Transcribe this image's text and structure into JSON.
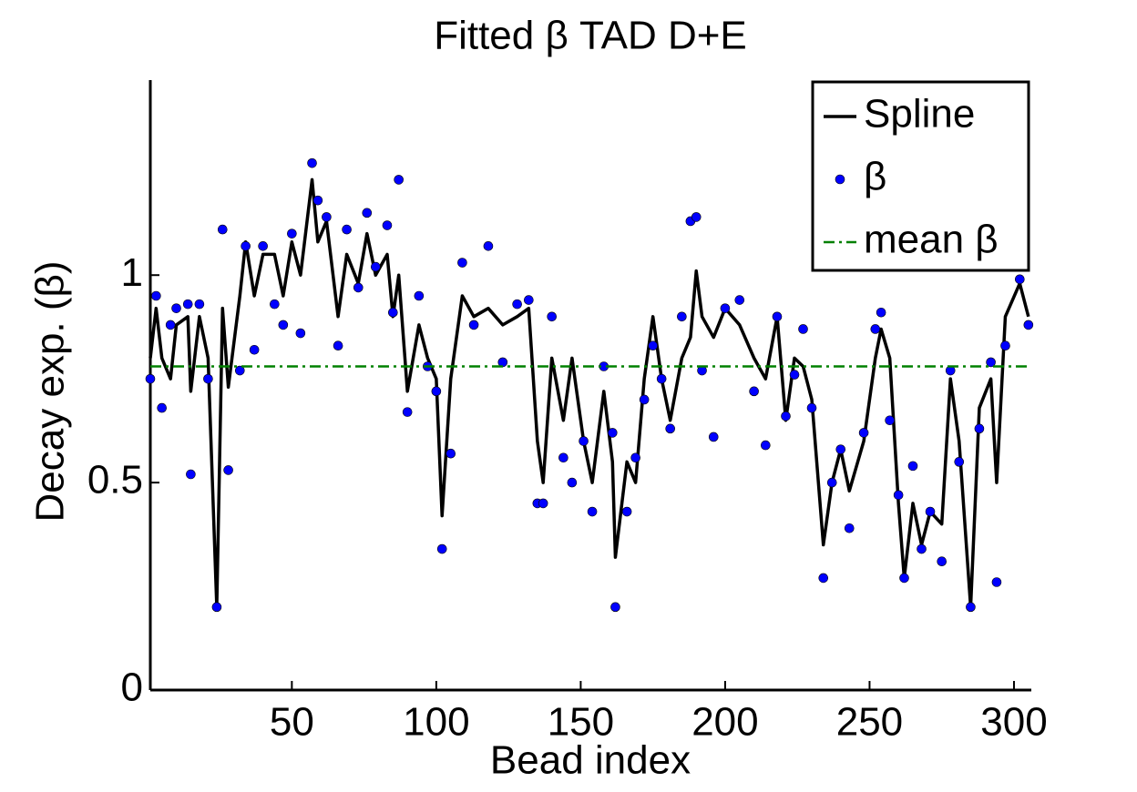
{
  "chart_data": {
    "type": "line",
    "title": "Fitted β TAD D+E",
    "x_label": "Bead index",
    "y_label": "Decay exp. (β)",
    "x": [
      1,
      3,
      5,
      8,
      10,
      14,
      15,
      18,
      21,
      24,
      26,
      28,
      32,
      34,
      37,
      40,
      44,
      47,
      50,
      53,
      57,
      59,
      62,
      66,
      69,
      73,
      76,
      79,
      83,
      85,
      87,
      90,
      94,
      97,
      100,
      102,
      105,
      109,
      113,
      118,
      123,
      128,
      132,
      135,
      137,
      140,
      144,
      147,
      151,
      154,
      158,
      161,
      162,
      166,
      169,
      172,
      175,
      178,
      181,
      185,
      188,
      190,
      192,
      196,
      200,
      205,
      210,
      214,
      218,
      221,
      224,
      227,
      230,
      234,
      237,
      240,
      243,
      248,
      252,
      254,
      257,
      260,
      262,
      265,
      268,
      271,
      275,
      278,
      281,
      285,
      288,
      292,
      294,
      297,
      302,
      305
    ],
    "series": [
      {
        "name": "Spline",
        "color": "#000000",
        "style": "line",
        "values": [
          0.8,
          0.92,
          0.8,
          0.75,
          0.88,
          0.9,
          0.72,
          0.9,
          0.8,
          0.2,
          0.92,
          0.73,
          0.95,
          1.08,
          0.95,
          1.05,
          1.05,
          0.95,
          1.08,
          1.0,
          1.23,
          1.08,
          1.13,
          0.9,
          1.05,
          0.98,
          1.1,
          1.0,
          1.05,
          0.9,
          1.0,
          0.72,
          0.88,
          0.8,
          0.75,
          0.42,
          0.75,
          0.95,
          0.9,
          0.92,
          0.88,
          0.9,
          0.92,
          0.6,
          0.5,
          0.8,
          0.65,
          0.8,
          0.6,
          0.5,
          0.72,
          0.55,
          0.32,
          0.55,
          0.5,
          0.75,
          0.9,
          0.75,
          0.65,
          0.8,
          0.85,
          1.01,
          0.9,
          0.85,
          0.92,
          0.88,
          0.8,
          0.75,
          0.9,
          0.65,
          0.8,
          0.78,
          0.7,
          0.35,
          0.5,
          0.58,
          0.48,
          0.6,
          0.8,
          0.87,
          0.8,
          0.45,
          0.27,
          0.45,
          0.35,
          0.43,
          0.4,
          0.75,
          0.6,
          0.2,
          0.68,
          0.75,
          0.5,
          0.9,
          0.98,
          0.9
        ]
      },
      {
        "name": "β",
        "color": "#0000ff",
        "style": "marker",
        "values": [
          0.75,
          0.95,
          0.68,
          0.88,
          0.92,
          0.93,
          0.52,
          0.93,
          0.75,
          0.2,
          1.11,
          0.53,
          0.77,
          1.07,
          0.82,
          1.07,
          0.93,
          0.88,
          1.1,
          0.86,
          1.27,
          1.18,
          1.14,
          0.83,
          1.11,
          0.97,
          1.15,
          1.02,
          1.12,
          0.91,
          1.23,
          0.67,
          0.95,
          0.78,
          0.72,
          0.34,
          0.57,
          1.03,
          0.88,
          1.07,
          0.79,
          0.93,
          0.94,
          0.45,
          0.45,
          0.9,
          0.56,
          0.5,
          0.6,
          0.43,
          0.78,
          0.62,
          0.2,
          0.43,
          0.56,
          0.7,
          0.83,
          0.75,
          0.63,
          0.9,
          1.13,
          1.14,
          0.77,
          0.61,
          0.92,
          0.94,
          0.72,
          0.59,
          0.9,
          0.66,
          0.76,
          0.87,
          0.68,
          0.27,
          0.5,
          0.58,
          0.39,
          0.62,
          0.87,
          0.91,
          0.65,
          0.47,
          0.27,
          0.54,
          0.34,
          0.43,
          0.31,
          0.77,
          0.55,
          0.2,
          0.63,
          0.79,
          0.26,
          0.83,
          0.99,
          0.88
        ]
      },
      {
        "name": "mean β",
        "color": "#008000",
        "style": "dashdot",
        "value": 0.78
      }
    ],
    "xlim": [
      1,
      306
    ],
    "ylim": [
      0,
      1.47
    ],
    "xticks": [
      50,
      100,
      150,
      200,
      250,
      300
    ],
    "yticks": [
      0,
      0.5,
      1
    ],
    "legend": "upper right"
  }
}
